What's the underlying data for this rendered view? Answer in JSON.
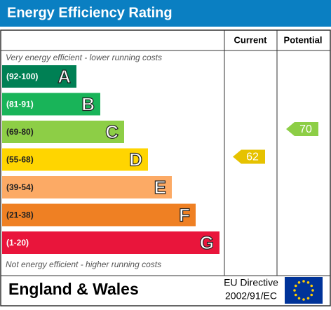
{
  "header": {
    "title": "Energy Efficiency Rating"
  },
  "columns": [
    "Current",
    "Potential"
  ],
  "top_note": "Very energy efficient - lower running costs",
  "bottom_note": "Not energy efficient - higher running costs",
  "bands": [
    {
      "range": "(92-100)",
      "letter": "A",
      "color": "#008054"
    },
    {
      "range": "(81-91)",
      "letter": "B",
      "color": "#19b459"
    },
    {
      "range": "(69-80)",
      "letter": "C",
      "color": "#8dce46"
    },
    {
      "range": "(55-68)",
      "letter": "D",
      "color": "#ffd500"
    },
    {
      "range": "(39-54)",
      "letter": "E",
      "color": "#fcaa65"
    },
    {
      "range": "(21-38)",
      "letter": "F",
      "color": "#ef8023"
    },
    {
      "range": "(1-20)",
      "letter": "G",
      "color": "#e9153b"
    }
  ],
  "current": {
    "value": 62,
    "color": "#e6c200"
  },
  "potential": {
    "value": 70,
    "color": "#8dce46"
  },
  "footer": {
    "region": "England & Wales",
    "directive": [
      "EU Directive",
      "2002/91/EC"
    ]
  }
}
